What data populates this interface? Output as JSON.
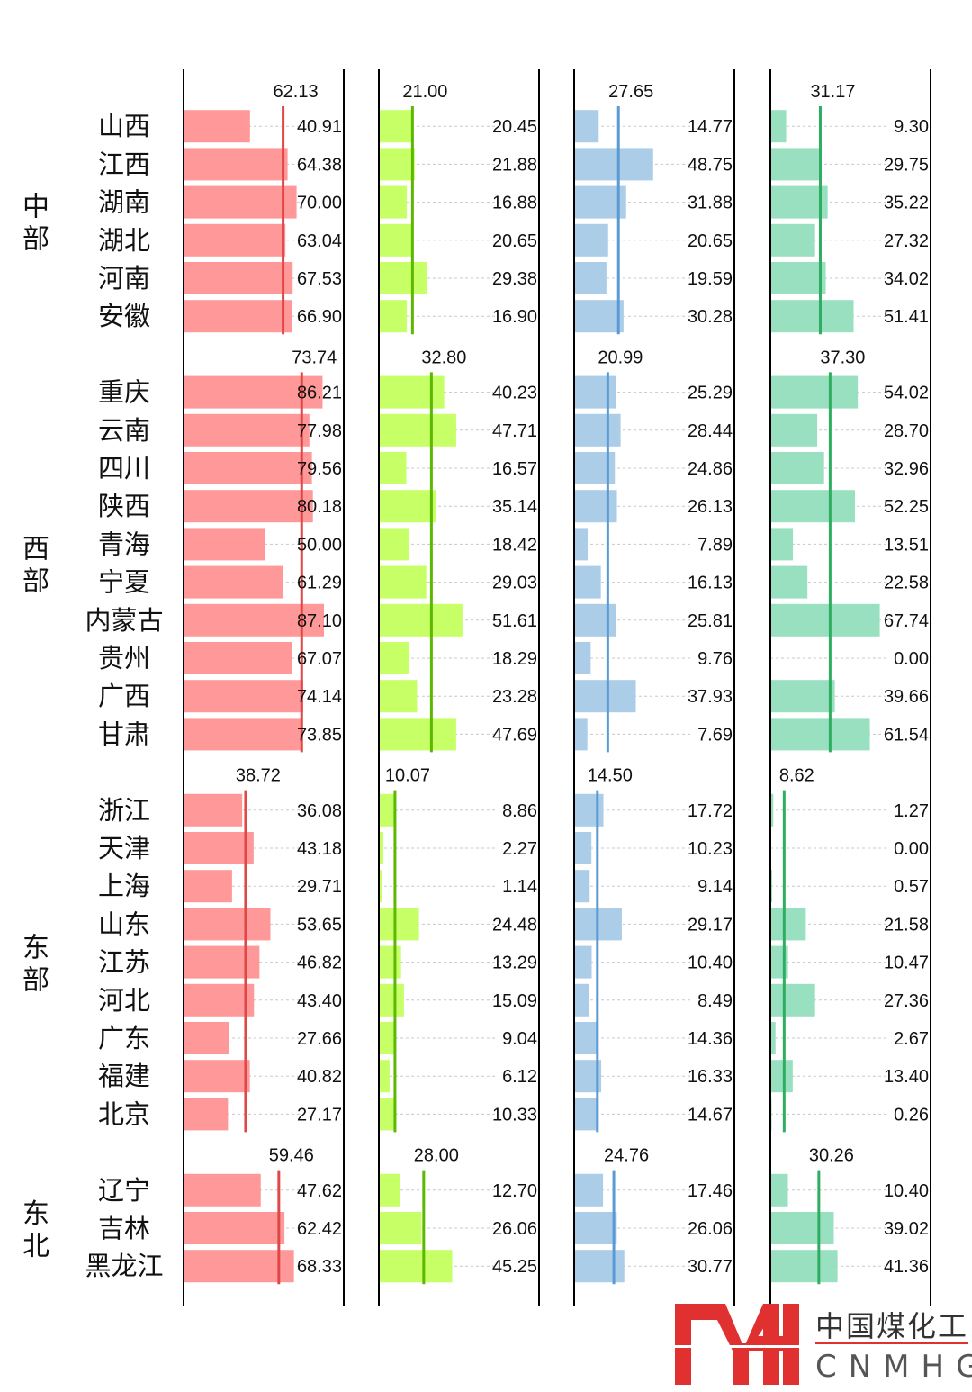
{
  "chart_data": {
    "type": "bar",
    "orientation": "horizontal",
    "xlim": [
      0,
      100
    ],
    "grid": false,
    "panels": [
      {
        "bar_color": "#ff9999",
        "avg_color": "#e04848"
      },
      {
        "bar_color": "#c6ff66",
        "avg_color": "#5cb800"
      },
      {
        "bar_color": "#accde8",
        "avg_color": "#5b9bd5"
      },
      {
        "bar_color": "#99e0c0",
        "avg_color": "#2fae62"
      }
    ],
    "groups": [
      {
        "name": "中部",
        "averages": [
          "62.13",
          "21.00",
          "27.65",
          "31.17"
        ],
        "rows": [
          {
            "province": "山西",
            "values": [
              "40.91",
              "20.45",
              "14.77",
              "9.30"
            ]
          },
          {
            "province": "江西",
            "values": [
              "64.38",
              "21.88",
              "48.75",
              "29.75"
            ]
          },
          {
            "province": "湖南",
            "values": [
              "70.00",
              "16.88",
              "31.88",
              "35.22"
            ]
          },
          {
            "province": "湖北",
            "values": [
              "63.04",
              "20.65",
              "20.65",
              "27.32"
            ]
          },
          {
            "province": "河南",
            "values": [
              "67.53",
              "29.38",
              "19.59",
              "34.02"
            ]
          },
          {
            "province": "安徽",
            "values": [
              "66.90",
              "16.90",
              "30.28",
              "51.41"
            ]
          }
        ]
      },
      {
        "name": "西部",
        "averages": [
          "73.74",
          "32.80",
          "20.99",
          "37.30"
        ],
        "rows": [
          {
            "province": "重庆",
            "values": [
              "86.21",
              "40.23",
              "25.29",
              "54.02"
            ]
          },
          {
            "province": "云南",
            "values": [
              "77.98",
              "47.71",
              "28.44",
              "28.70"
            ]
          },
          {
            "province": "四川",
            "values": [
              "79.56",
              "16.57",
              "24.86",
              "32.96"
            ]
          },
          {
            "province": "陕西",
            "values": [
              "80.18",
              "35.14",
              "26.13",
              "52.25"
            ]
          },
          {
            "province": "青海",
            "values": [
              "50.00",
              "18.42",
              "7.89",
              "13.51"
            ]
          },
          {
            "province": "宁夏",
            "values": [
              "61.29",
              "29.03",
              "16.13",
              "22.58"
            ]
          },
          {
            "province": "内蒙古",
            "values": [
              "87.10",
              "51.61",
              "25.81",
              "67.74"
            ]
          },
          {
            "province": "贵州",
            "values": [
              "67.07",
              "18.29",
              "9.76",
              "0.00"
            ]
          },
          {
            "province": "广西",
            "values": [
              "74.14",
              "23.28",
              "37.93",
              "39.66"
            ]
          },
          {
            "province": "甘肃",
            "values": [
              "73.85",
              "47.69",
              "7.69",
              "61.54"
            ]
          }
        ]
      },
      {
        "name": "东部",
        "averages": [
          "38.72",
          "10.07",
          "14.50",
          "8.62"
        ],
        "rows": [
          {
            "province": "浙江",
            "values": [
              "36.08",
              "8.86",
              "17.72",
              "1.27"
            ]
          },
          {
            "province": "天津",
            "values": [
              "43.18",
              "2.27",
              "10.23",
              "0.00"
            ]
          },
          {
            "province": "上海",
            "values": [
              "29.71",
              "1.14",
              "9.14",
              "0.57"
            ]
          },
          {
            "province": "山东",
            "values": [
              "53.65",
              "24.48",
              "29.17",
              "21.58"
            ]
          },
          {
            "province": "江苏",
            "values": [
              "46.82",
              "13.29",
              "10.40",
              "10.47"
            ]
          },
          {
            "province": "河北",
            "values": [
              "43.40",
              "15.09",
              "8.49",
              "27.36"
            ]
          },
          {
            "province": "广东",
            "values": [
              "27.66",
              "9.04",
              "14.36",
              "2.67"
            ]
          },
          {
            "province": "福建",
            "values": [
              "40.82",
              "6.12",
              "16.33",
              "13.40"
            ]
          },
          {
            "province": "北京",
            "values": [
              "27.17",
              "10.33",
              "14.67",
              "0.26"
            ]
          }
        ]
      },
      {
        "name": "东北",
        "averages": [
          "59.46",
          "28.00",
          "24.76",
          "30.26"
        ],
        "rows": [
          {
            "province": "辽宁",
            "values": [
              "47.62",
              "12.70",
              "17.46",
              "10.40"
            ]
          },
          {
            "province": "吉林",
            "values": [
              "62.42",
              "26.06",
              "26.06",
              "39.02"
            ]
          },
          {
            "province": "黑龙江",
            "values": [
              "68.33",
              "45.25",
              "30.77",
              "41.36"
            ]
          }
        ]
      }
    ]
  },
  "watermark": {
    "mark": "MH",
    "name_cn": "中国煤化工",
    "name_en": "CNMHG",
    "color": "#e03030"
  }
}
